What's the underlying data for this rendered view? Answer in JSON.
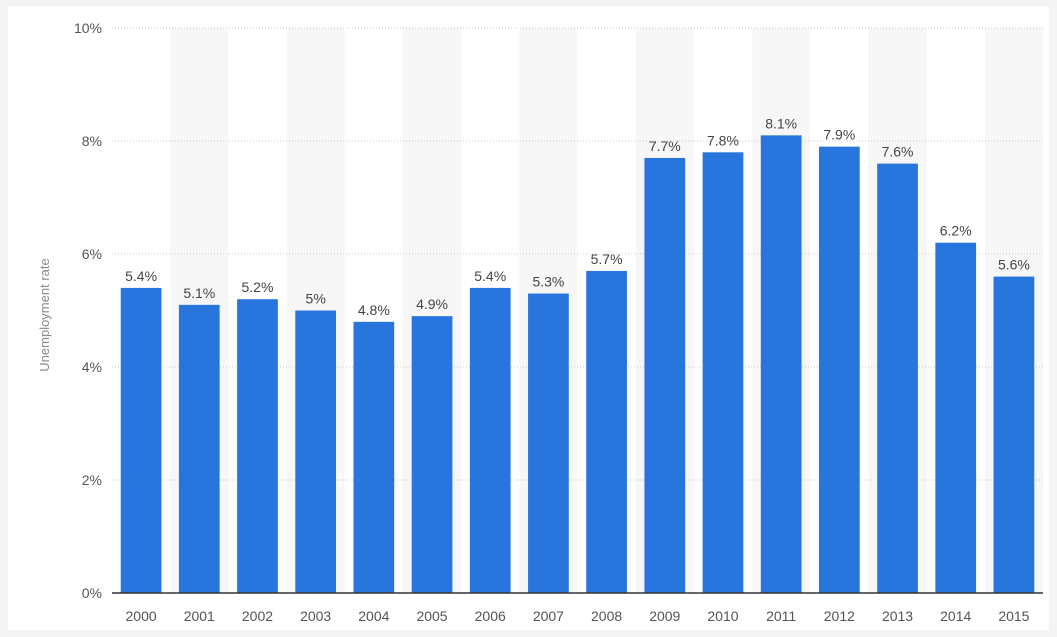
{
  "chart_data": {
    "type": "bar",
    "title": "",
    "xlabel": "",
    "ylabel": "Unemployment rate",
    "categories": [
      "2000",
      "2001",
      "2002",
      "2003",
      "2004",
      "2005",
      "2006",
      "2007",
      "2008",
      "2009",
      "2010",
      "2011",
      "2012",
      "2013",
      "2014",
      "2015"
    ],
    "values": [
      5.4,
      5.1,
      5.2,
      5.0,
      4.8,
      4.9,
      5.4,
      5.3,
      5.7,
      7.7,
      7.8,
      8.1,
      7.9,
      7.6,
      6.2,
      5.6
    ],
    "value_labels": [
      "5.4%",
      "5.1%",
      "5.2%",
      "5%",
      "4.8%",
      "4.9%",
      "5.4%",
      "5.3%",
      "5.7%",
      "7.7%",
      "7.8%",
      "8.1%",
      "7.9%",
      "7.6%",
      "6.2%",
      "5.6%"
    ],
    "ylim": [
      0,
      10
    ],
    "y_ticks": [
      0,
      2,
      4,
      6,
      8,
      10
    ],
    "y_tick_labels": [
      "0%",
      "2%",
      "4%",
      "6%",
      "8%",
      "10%"
    ],
    "grid": true,
    "legend": "none",
    "bar_color": "#2876dd",
    "alt_band_color": "#f7f7f7"
  }
}
